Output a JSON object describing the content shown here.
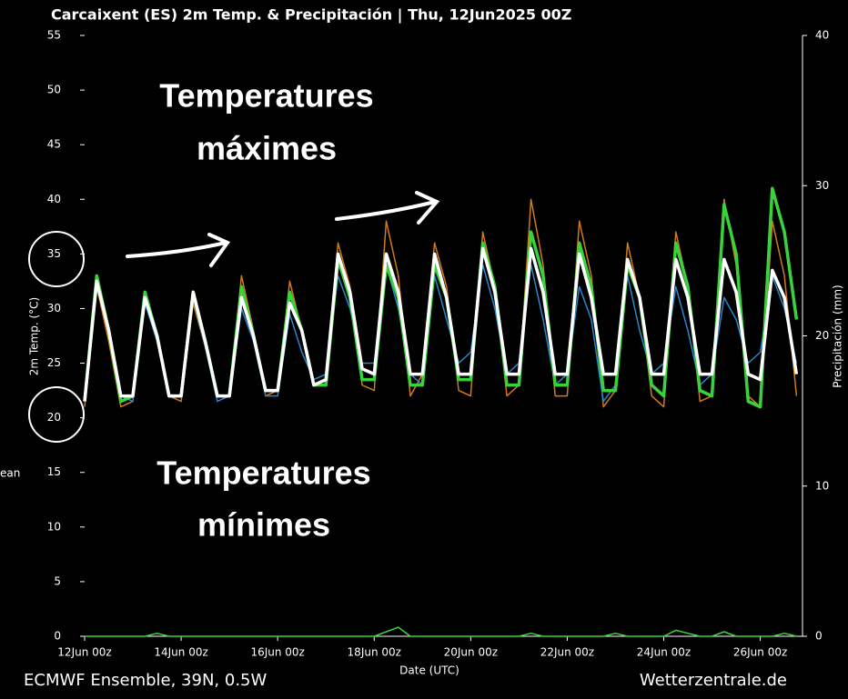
{
  "chart_data": {
    "type": "line",
    "title": "Carcaixent  (ES)  2m Temp. & Precipitación | Thu, 12Jun2025 00Z",
    "ylabel": "2m Temp. (°C)",
    "y2label": "Precipitación (mm)",
    "xlabel": "Date (UTC)",
    "source_left": "ECMWF Ensemble, 39N, 0.5W",
    "source_right": "Wetterzentrale.de",
    "annotations": [
      [
        "Temperatures",
        "máximes"
      ],
      [
        "Temperatures",
        "mínimes"
      ]
    ],
    "x": [
      0,
      6,
      12,
      18,
      24,
      30,
      36,
      42,
      48,
      54,
      60,
      66,
      72,
      78,
      84,
      90,
      96,
      102,
      108,
      114,
      120,
      126,
      132,
      138,
      144,
      150,
      156,
      162,
      168,
      174,
      180,
      186,
      192,
      198,
      204,
      210,
      216,
      222,
      228,
      234,
      240,
      246,
      252,
      258,
      264,
      270,
      276,
      282,
      288,
      294,
      300,
      306,
      312,
      318,
      324,
      330,
      336,
      342,
      348,
      354
    ],
    "xlim": [
      0,
      357
    ],
    "xticks": [
      {
        "value": 0,
        "label": "12Jun 00z"
      },
      {
        "value": 48,
        "label": "14Jun 00z"
      },
      {
        "value": 96,
        "label": "16Jun 00z"
      },
      {
        "value": 144,
        "label": "18Jun 00z"
      },
      {
        "value": 192,
        "label": "20Jun 00z"
      },
      {
        "value": 240,
        "label": "22Jun 00z"
      },
      {
        "value": 288,
        "label": "24Jun 00z"
      },
      {
        "value": 336,
        "label": "26Jun 00z"
      }
    ],
    "ylim": [
      0,
      55
    ],
    "yticks": [
      0,
      5,
      10,
      15,
      20,
      25,
      30,
      35,
      40,
      45,
      50,
      55
    ],
    "y2lim": [
      0,
      40
    ],
    "y2ticks": [
      0,
      10,
      20,
      30,
      40
    ],
    "series": [
      {
        "color": "#d07a1a",
        "values": [
          21,
          32,
          27,
          21,
          21.5,
          31.5,
          27,
          22,
          21.5,
          30.5,
          26.5,
          22,
          22,
          33,
          28,
          22,
          22.5,
          32.5,
          28,
          23,
          23,
          36,
          32,
          23,
          22.5,
          38,
          33,
          22,
          24,
          36,
          32,
          22.5,
          22,
          37,
          32,
          22,
          23,
          40,
          34,
          22,
          22,
          38,
          33,
          21,
          22.5,
          36,
          31,
          22,
          21,
          37,
          32,
          21.5,
          22,
          40,
          34,
          22,
          21,
          38,
          33,
          22
        ]
      },
      {
        "color": "#2a86c8",
        "values": [
          21.5,
          33,
          28,
          22,
          21.5,
          30.5,
          27,
          22,
          22,
          31,
          26.5,
          21.5,
          22,
          30,
          27,
          22,
          22,
          29.5,
          26,
          23.5,
          24,
          33,
          30,
          25,
          25,
          34,
          30,
          24,
          23,
          33,
          29,
          25,
          26,
          34,
          30,
          24,
          25,
          34,
          29,
          23,
          24,
          32,
          29,
          21.5,
          23,
          33,
          28,
          24,
          25,
          32,
          28,
          23,
          24,
          31,
          29,
          25,
          26,
          33,
          30,
          25
        ]
      },
      {
        "color": "#3ad23a",
        "values": [
          21.5,
          33,
          28,
          21.5,
          22,
          31.5,
          27.5,
          22,
          22,
          31.5,
          27,
          22,
          22,
          32,
          27.5,
          22.5,
          22.5,
          31.5,
          28,
          23,
          23,
          34.5,
          31,
          23.5,
          23.5,
          34,
          31,
          23,
          23,
          34,
          31,
          23.5,
          23.5,
          36,
          32,
          23,
          23,
          37,
          33,
          23,
          23,
          36,
          32,
          22.5,
          22.5,
          34,
          31,
          23,
          22,
          36,
          32,
          22.5,
          22,
          39.5,
          35,
          21.5,
          21,
          41,
          37,
          29
        ]
      },
      {
        "name": "ean",
        "color": "#ffffff",
        "values": [
          21.5,
          32.5,
          28,
          22,
          22,
          31,
          27.5,
          22,
          22,
          31.5,
          27,
          22,
          22,
          31,
          27.5,
          22.5,
          22.5,
          30.5,
          28,
          23,
          23.5,
          35,
          31.5,
          24.5,
          24,
          35,
          31.5,
          24,
          24,
          35,
          31,
          24,
          24,
          35.5,
          31.5,
          24,
          24,
          35.5,
          31.5,
          24,
          24,
          35,
          31,
          24,
          24,
          34.5,
          31,
          24,
          24,
          34.5,
          31,
          24,
          24,
          34.5,
          31.5,
          24,
          23.5,
          33.5,
          31,
          24
        ]
      },
      {
        "color": "#3ad23a",
        "axis": "y2",
        "values": [
          0,
          0,
          0,
          0,
          0,
          0,
          0.2,
          0,
          0,
          0,
          0,
          0,
          0,
          0,
          0,
          0,
          0,
          0,
          0,
          0,
          0,
          0,
          0,
          0,
          0,
          0.3,
          0.6,
          0,
          0,
          0,
          0,
          0,
          0,
          0,
          0,
          0,
          0,
          0.2,
          0,
          0,
          0,
          0,
          0,
          0,
          0.2,
          0,
          0,
          0,
          0,
          0.4,
          0.2,
          0,
          0,
          0.3,
          0,
          0,
          0,
          0,
          0.2,
          0
        ]
      }
    ]
  }
}
